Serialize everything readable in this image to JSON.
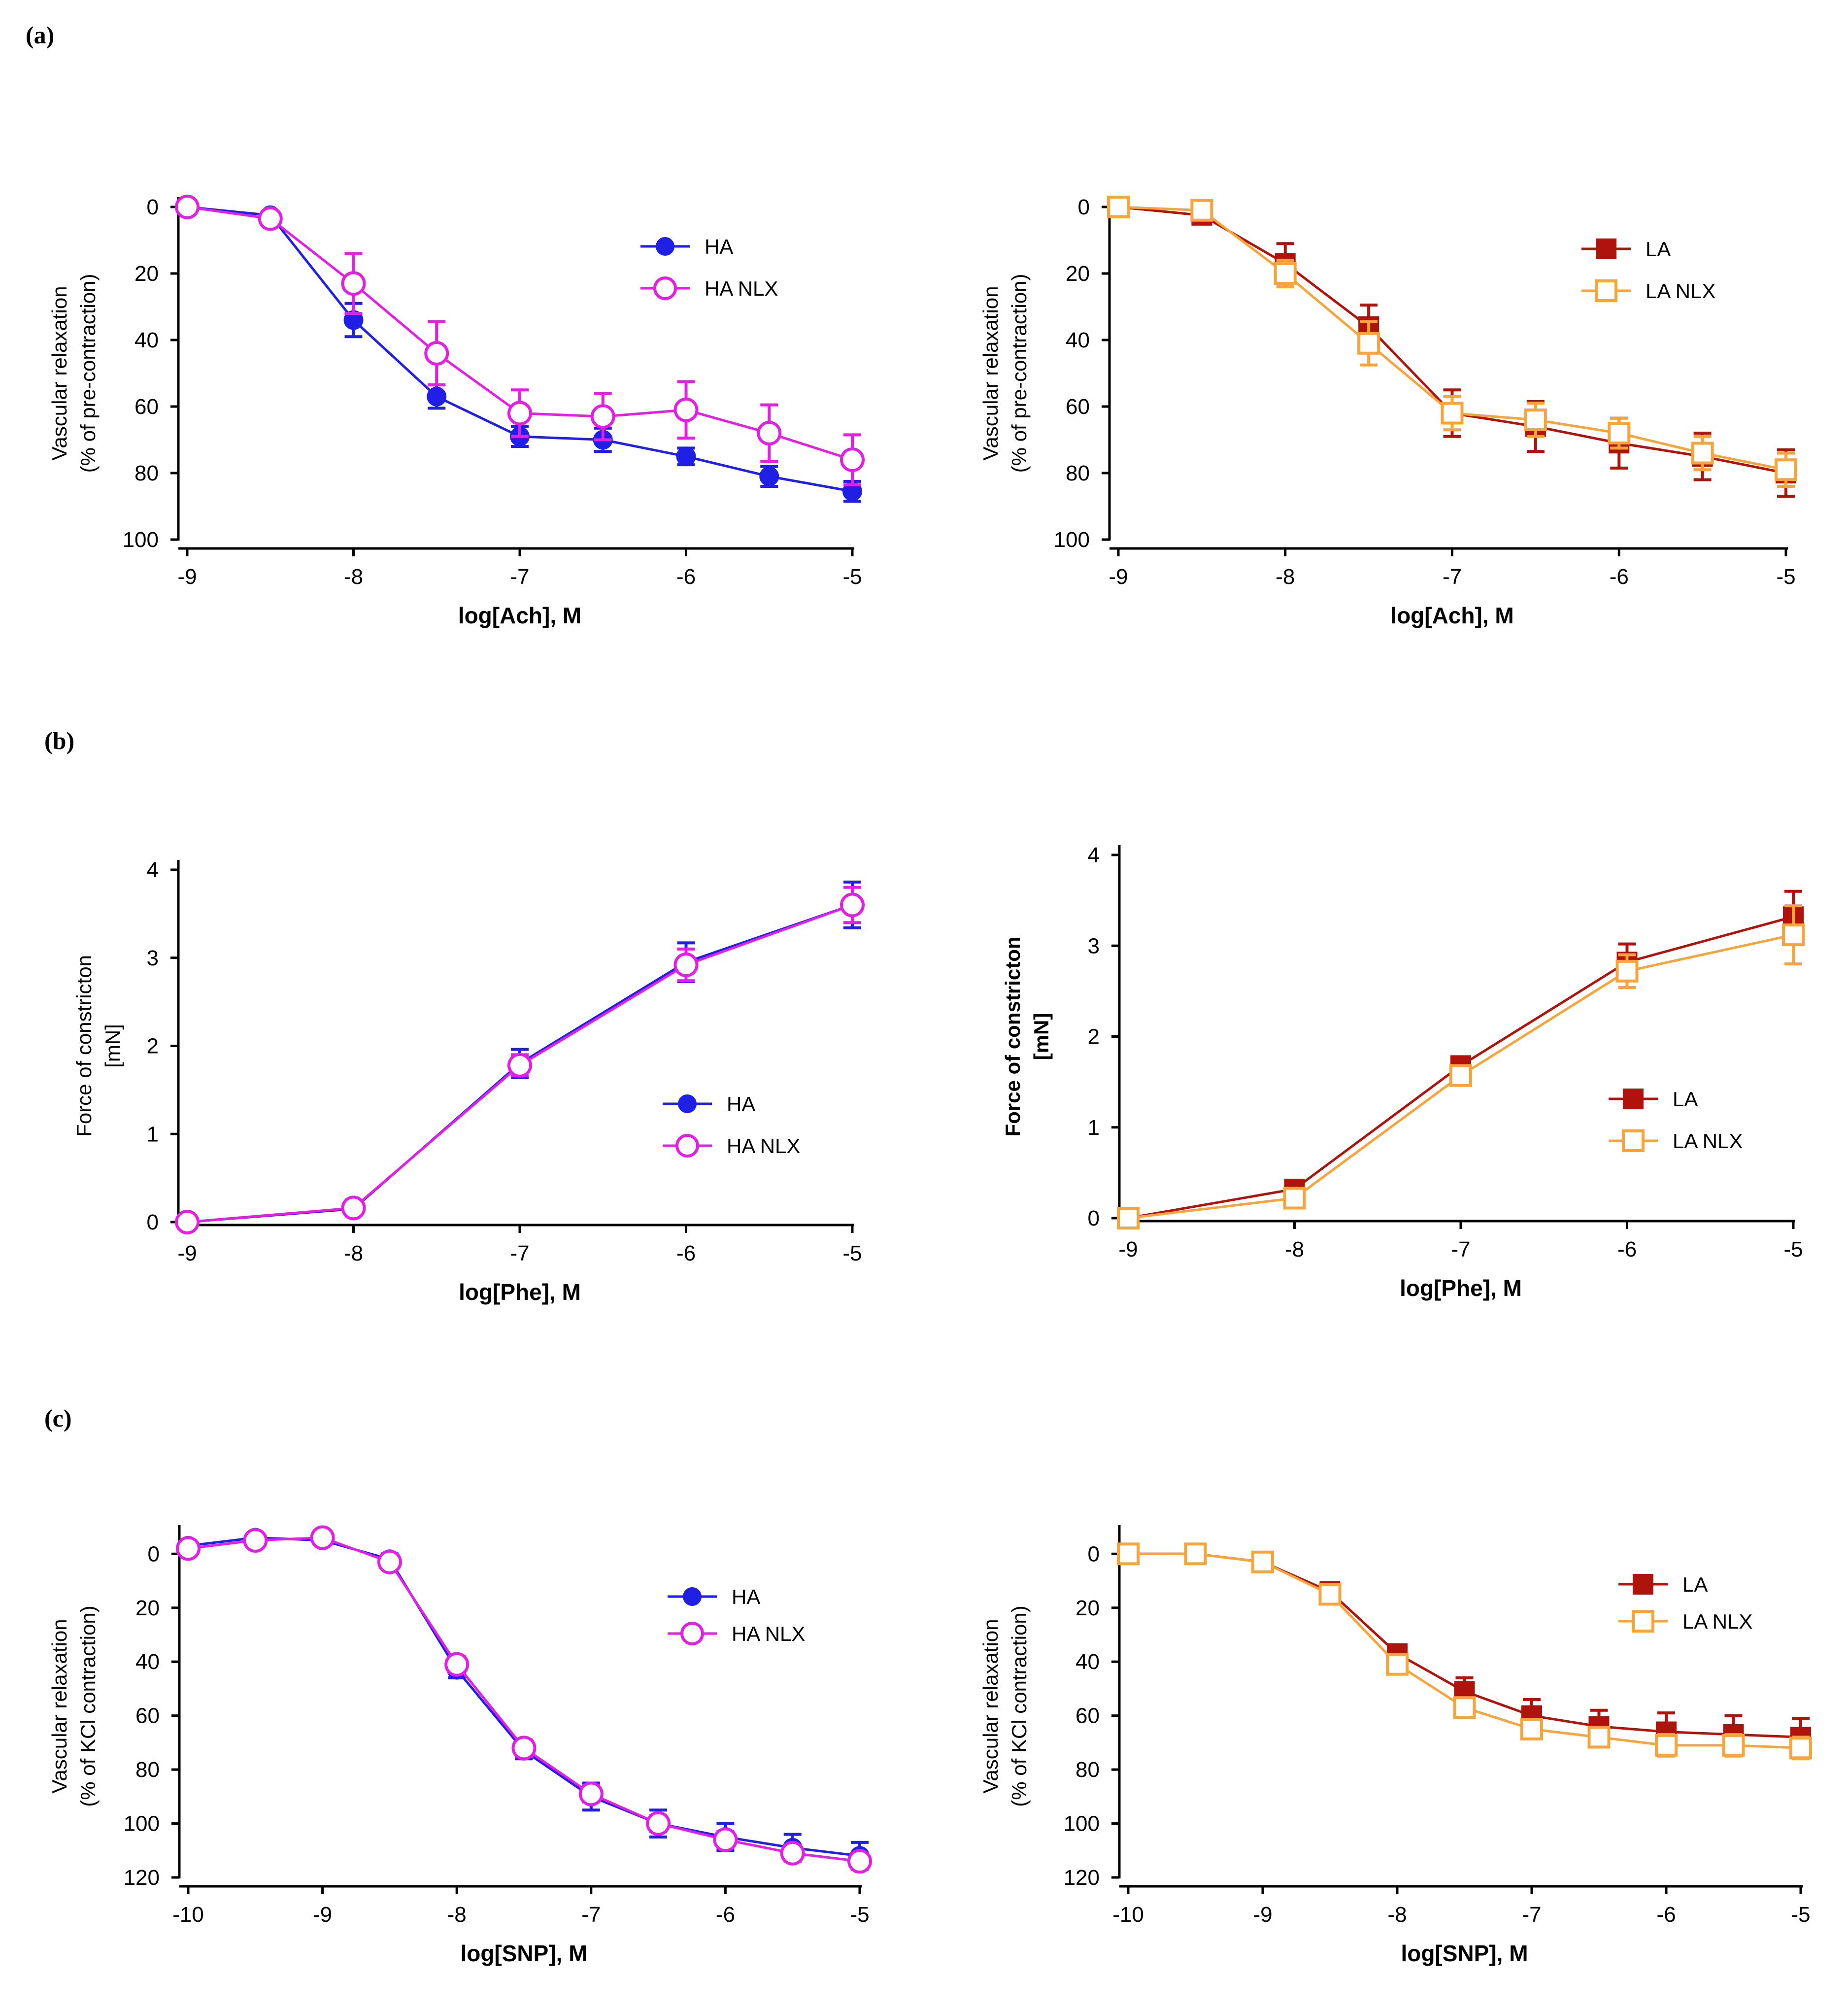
{
  "panel_labels": [
    "(a)",
    "(b)",
    "(c)"
  ],
  "chart_data": [
    {
      "type": "line",
      "panel": "(a)",
      "position": "left",
      "xlabel": "log[Ach], M",
      "ylabel": [
        "Vascular relaxation",
        "(% of pre-contraction)"
      ],
      "ylabel_bold": false,
      "xlim": [
        -9,
        -5
      ],
      "ylim": [
        0,
        100
      ],
      "y_inverted": true,
      "xticks": [
        -9,
        -8,
        -7,
        -6,
        -5
      ],
      "xtick_labels": [
        "-9",
        "-8",
        "-7",
        "-6",
        "-5"
      ],
      "yticks": [
        0,
        20,
        40,
        60,
        80,
        100
      ],
      "ytick_labels": [
        "0",
        "20",
        "40",
        "60",
        "80",
        "100"
      ],
      "legend_position": "top-right",
      "x": [
        -9,
        -8.5,
        -8,
        -7.5,
        -7,
        -6.5,
        -6,
        -5.5,
        -5
      ],
      "series": [
        {
          "name": "HA",
          "color": "#1f1fe6",
          "marker": "circle",
          "filled": true,
          "values": [
            0,
            2.5,
            34,
            57,
            69,
            70,
            75,
            81,
            85.5
          ],
          "errors": [
            0.5,
            1,
            5,
            3.5,
            3,
            3.5,
            2.5,
            3,
            3
          ]
        },
        {
          "name": "HA NLX",
          "color": "#e51ee5",
          "marker": "circle",
          "filled": false,
          "values": [
            0,
            3.5,
            23,
            44,
            62,
            63,
            61,
            68,
            76
          ],
          "errors": [
            0.5,
            1.5,
            9,
            9.5,
            7,
            7,
            8.5,
            8.5,
            7.5
          ]
        }
      ]
    },
    {
      "type": "line",
      "panel": "(a)",
      "position": "right",
      "xlabel": "log[Ach], M",
      "ylabel": [
        "Vascular relaxation",
        "(% of pre-contraction)"
      ],
      "ylabel_bold": false,
      "xlim": [
        -9,
        -5
      ],
      "ylim": [
        0,
        100
      ],
      "y_inverted": true,
      "xticks": [
        -9,
        -8,
        -7,
        -6,
        -5
      ],
      "xtick_labels": [
        "-9",
        "-8",
        "-7",
        "-6",
        "-5"
      ],
      "yticks": [
        0,
        20,
        40,
        60,
        80,
        100
      ],
      "ytick_labels": [
        "0",
        "20",
        "40",
        "60",
        "80",
        "100"
      ],
      "legend_position": "top-right",
      "x": [
        -9,
        -8.5,
        -8,
        -7.5,
        -7,
        -6.5,
        -6,
        -5.5,
        -5
      ],
      "series": [
        {
          "name": "LA",
          "color": "#b0120c",
          "marker": "square",
          "filled": true,
          "values": [
            0,
            2.5,
            17,
            36,
            62,
            66,
            71,
            75,
            80
          ],
          "errors": [
            0.5,
            1,
            6,
            6.5,
            7,
            7.5,
            7.5,
            7,
            7
          ]
        },
        {
          "name": "LA NLX",
          "color": "#f7a43a",
          "marker": "square",
          "filled": false,
          "values": [
            0,
            1,
            20,
            41,
            62,
            64,
            68,
            74,
            79
          ],
          "errors": [
            0.5,
            1.5,
            4,
            6.5,
            5,
            5,
            4.5,
            5,
            5
          ]
        }
      ]
    },
    {
      "type": "line",
      "panel": "(b)",
      "position": "left",
      "xlabel": "log[Phe], M",
      "ylabel": [
        "Force of constricton",
        "[mN]"
      ],
      "ylabel_bold": false,
      "xlim": [
        -9,
        -5
      ],
      "ylim": [
        0,
        4
      ],
      "y_inverted": false,
      "xticks": [
        -9,
        -8,
        -7,
        -6,
        -5
      ],
      "xtick_labels": [
        "-9",
        "-8",
        "-7",
        "-6",
        "-5"
      ],
      "yticks": [
        0,
        1,
        2,
        3,
        4
      ],
      "ytick_labels": [
        "0",
        "1",
        "2",
        "3",
        "4"
      ],
      "legend_position": "right",
      "x": [
        -9,
        -8,
        -7,
        -6,
        -5
      ],
      "series": [
        {
          "name": "HA",
          "color": "#1f1fe6",
          "marker": "circle",
          "filled": true,
          "values": [
            0,
            0.15,
            1.8,
            2.95,
            3.6
          ],
          "errors": [
            0.02,
            0.04,
            0.16,
            0.22,
            0.26
          ]
        },
        {
          "name": "HA NLX",
          "color": "#e51ee5",
          "marker": "circle",
          "filled": false,
          "values": [
            0,
            0.16,
            1.78,
            2.92,
            3.6
          ],
          "errors": [
            0.02,
            0.04,
            0.12,
            0.18,
            0.2
          ]
        }
      ]
    },
    {
      "type": "line",
      "panel": "(b)",
      "position": "right",
      "xlabel": "log[Phe], M",
      "ylabel": [
        "Force of constricton",
        "[mN]"
      ],
      "ylabel_bold": true,
      "xlim": [
        -9,
        -5
      ],
      "ylim": [
        0,
        4
      ],
      "y_inverted": false,
      "xticks": [
        -9,
        -8,
        -7,
        -6,
        -5
      ],
      "xtick_labels": [
        "-9",
        "-8",
        "-7",
        "-6",
        "-5"
      ],
      "yticks": [
        0,
        1,
        2,
        3,
        4
      ],
      "ytick_labels": [
        "0",
        "1",
        "2",
        "3",
        "4"
      ],
      "legend_position": "right",
      "x": [
        -9,
        -8,
        -7,
        -6,
        -5
      ],
      "series": [
        {
          "name": "LA",
          "color": "#b0120c",
          "marker": "square",
          "filled": true,
          "values": [
            0,
            0.32,
            1.68,
            2.82,
            3.32
          ],
          "errors": [
            0.02,
            0.04,
            0.08,
            0.2,
            0.28
          ]
        },
        {
          "name": "LA NLX",
          "color": "#f7a43a",
          "marker": "square",
          "filled": false,
          "values": [
            0,
            0.22,
            1.57,
            2.72,
            3.12
          ],
          "errors": [
            0.02,
            0.04,
            0.08,
            0.18,
            0.32
          ]
        }
      ]
    },
    {
      "type": "line",
      "panel": "(c)",
      "position": "left",
      "xlabel": "log[SNP], M",
      "ylabel": [
        "Vascular relaxation",
        "(% of KCl contraction)"
      ],
      "ylabel_bold": false,
      "xlim": [
        -10,
        -5
      ],
      "ylim": [
        -7,
        120
      ],
      "y_inverted": true,
      "xticks": [
        -10,
        -9,
        -8,
        -7,
        -6,
        -5
      ],
      "xtick_labels": [
        "-10",
        "-9",
        "-8",
        "-7",
        "-6",
        "-5"
      ],
      "yticks": [
        0,
        20,
        40,
        60,
        80,
        100,
        120
      ],
      "ytick_labels": [
        "0",
        "20",
        "40",
        "60",
        "80",
        "100",
        "120"
      ],
      "legend_position": "top-right",
      "x": [
        -10,
        -9.5,
        -9,
        -8.5,
        -8,
        -7.5,
        -7,
        -6.5,
        -6,
        -5.5,
        -5
      ],
      "series": [
        {
          "name": "HA",
          "color": "#1f1fe6",
          "marker": "circle",
          "filled": true,
          "values": [
            -3,
            -6,
            -5,
            2,
            43,
            73,
            90,
            100,
            105,
            109,
            112
          ],
          "errors": [
            1,
            1,
            1,
            2,
            3,
            3,
            5,
            5,
            5,
            5,
            5
          ]
        },
        {
          "name": "HA NLX",
          "color": "#e51ee5",
          "marker": "circle",
          "filled": false,
          "values": [
            -2,
            -5,
            -6,
            3,
            41,
            72,
            89,
            100,
            106,
            111,
            114
          ],
          "errors": [
            1,
            1,
            1,
            2,
            3,
            3,
            3,
            3,
            3,
            3,
            3
          ]
        }
      ]
    },
    {
      "type": "line",
      "panel": "(c)",
      "position": "right",
      "xlabel": "log[SNP], M",
      "ylabel": [
        "Vascular relaxation",
        "(% of KCl contraction)"
      ],
      "ylabel_bold": false,
      "xlim": [
        -10,
        -5
      ],
      "ylim": [
        -7,
        120
      ],
      "y_inverted": true,
      "xticks": [
        -10,
        -9,
        -8,
        -7,
        -6,
        -5
      ],
      "xtick_labels": [
        "-10",
        "-9",
        "-8",
        "-7",
        "-6",
        "-5"
      ],
      "yticks": [
        0,
        20,
        40,
        60,
        80,
        100,
        120
      ],
      "ytick_labels": [
        "0",
        "20",
        "40",
        "60",
        "80",
        "100",
        "120"
      ],
      "legend_position": "top-right",
      "x": [
        -10,
        -9.5,
        -9,
        -8.5,
        -8,
        -7.5,
        -7,
        -6.5,
        -6,
        -5.5,
        -5
      ],
      "series": [
        {
          "name": "LA",
          "color": "#b0120c",
          "marker": "square",
          "filled": true,
          "values": [
            0,
            0,
            3,
            14,
            37,
            51,
            60,
            64,
            66,
            67,
            68
          ],
          "errors": [
            1,
            1,
            1,
            2,
            3,
            5,
            6,
            6,
            7,
            7,
            7
          ]
        },
        {
          "name": "LA NLX",
          "color": "#f7a43a",
          "marker": "square",
          "filled": false,
          "values": [
            0,
            0,
            3,
            15,
            41,
            57,
            65,
            68,
            71,
            71,
            72
          ],
          "errors": [
            1,
            1,
            1,
            2,
            3,
            3,
            3,
            3,
            4,
            4,
            4
          ]
        }
      ]
    }
  ]
}
